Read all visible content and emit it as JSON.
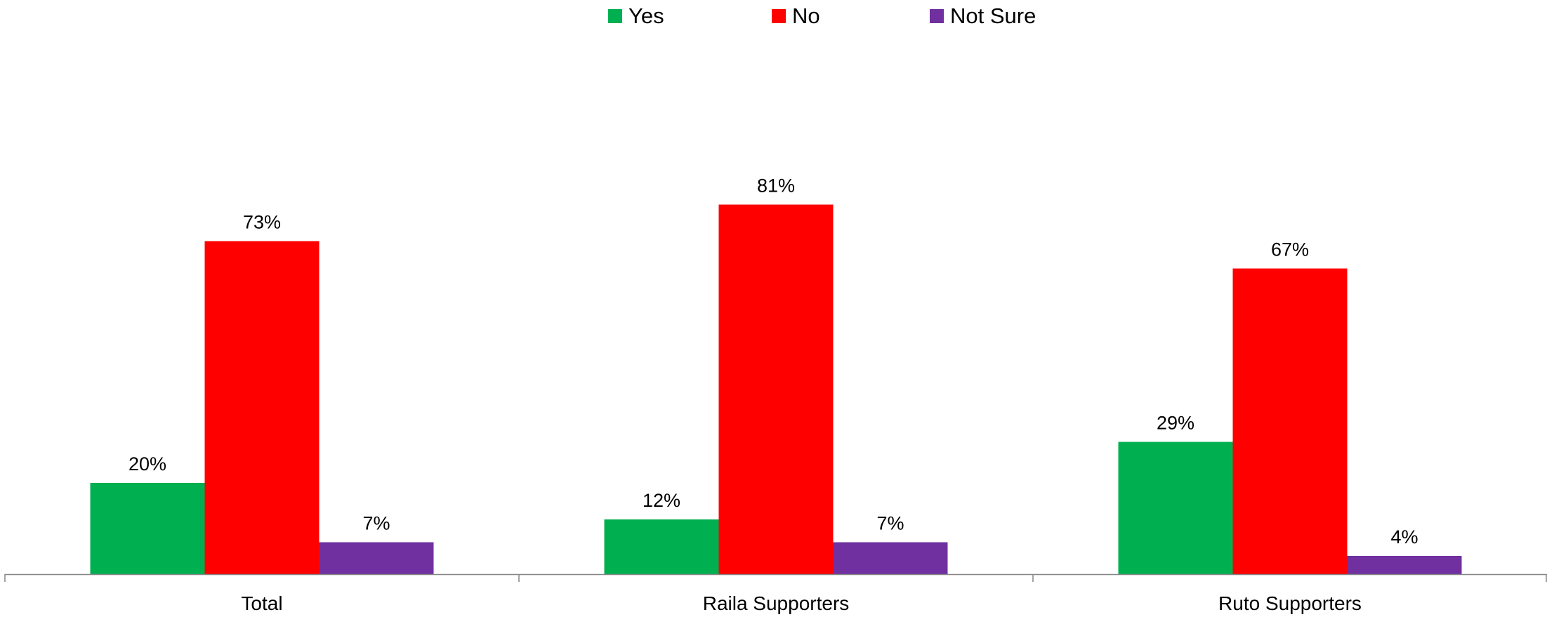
{
  "chart_data": {
    "type": "bar",
    "categories": [
      "Total",
      "Raila Supporters",
      "Ruto Supporters"
    ],
    "series": [
      {
        "name": "Yes",
        "color": "#00b050",
        "values": [
          20,
          12,
          29
        ],
        "labels": [
          "20%",
          "12%",
          "29%"
        ]
      },
      {
        "name": "No",
        "color": "#ff0000",
        "values": [
          73,
          81,
          67
        ],
        "labels": [
          "73%",
          "81%",
          "67%"
        ]
      },
      {
        "name": "Not Sure",
        "color": "#7030a0",
        "values": [
          7,
          7,
          4
        ],
        "labels": [
          "7%",
          "7%",
          "4%"
        ]
      }
    ],
    "ylim": [
      0,
      100
    ],
    "legend_position": "top-center",
    "grid": false
  }
}
